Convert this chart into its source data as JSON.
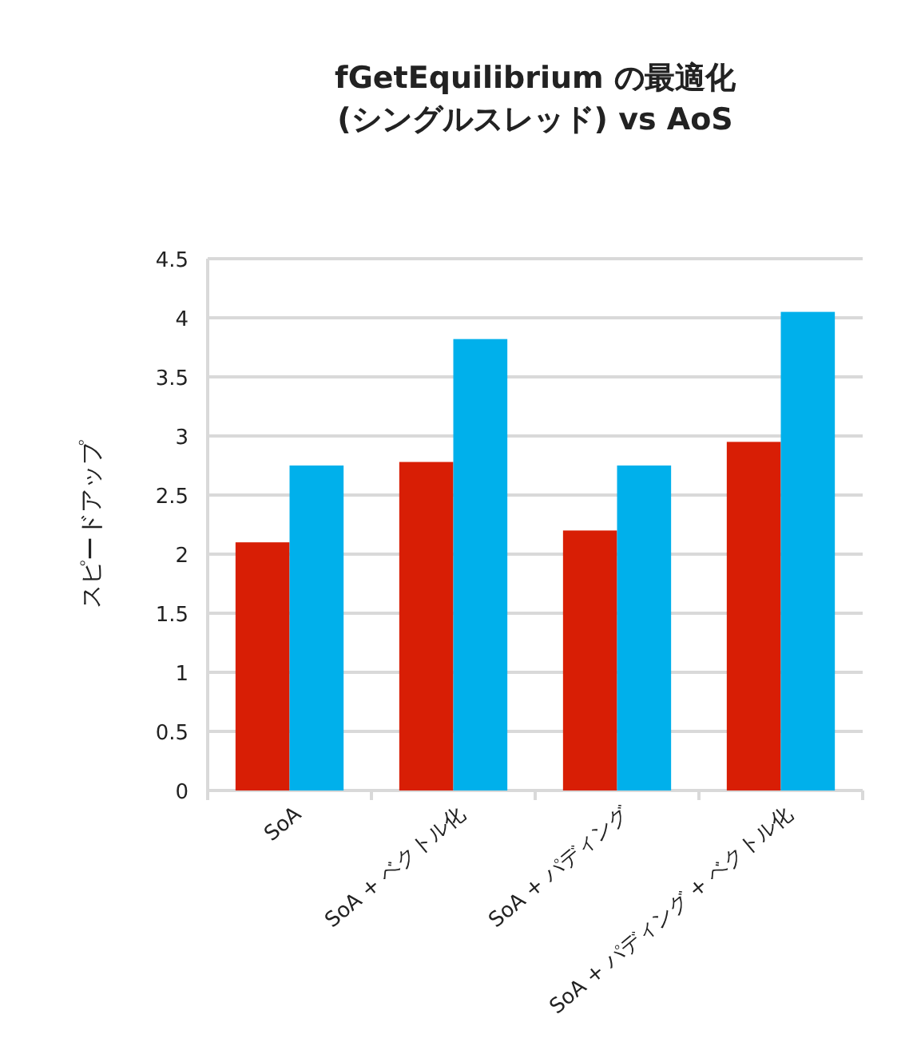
{
  "chart_data": {
    "type": "bar",
    "title": "fGetEquilibrium の最適化\n(シングルスレッド) vs AoS",
    "ylabel": "スピードアップ",
    "categories": [
      "SoA",
      "SoA + ベクトル化",
      "SoA + パディング",
      "SoA + パディング + ベクトル化"
    ],
    "series": [
      {
        "color": "#d81e05",
        "values": [
          2.1,
          2.78,
          2.2,
          2.95
        ]
      },
      {
        "color": "#00b0eb",
        "values": [
          2.75,
          3.82,
          2.75,
          4.05
        ]
      }
    ],
    "ylim": [
      0,
      4.5
    ],
    "yticks": [
      0,
      0.5,
      1,
      1.5,
      2,
      2.5,
      3,
      3.5,
      4,
      4.5
    ],
    "grid": "y"
  }
}
